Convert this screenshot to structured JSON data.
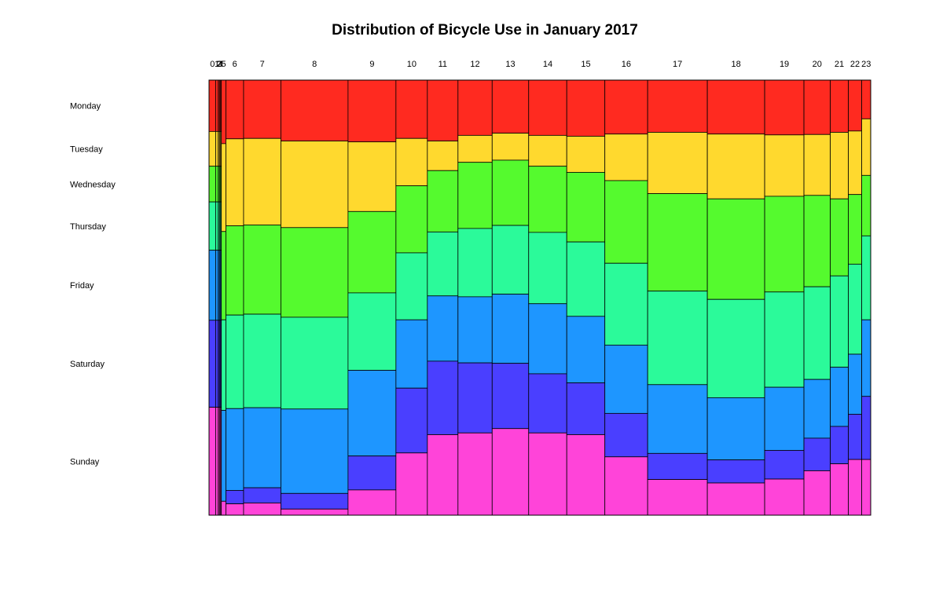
{
  "chart_data": {
    "type": "mosaic",
    "title": "Distribution of Bicycle Use in January 2017",
    "xlabel": "",
    "ylabel": "",
    "hours": [
      "0",
      "1",
      "2",
      "3",
      "4",
      "5",
      "6",
      "7",
      "8",
      "9",
      "10",
      "11",
      "12",
      "13",
      "14",
      "15",
      "16",
      "17",
      "18",
      "19",
      "20",
      "21",
      "22",
      "23"
    ],
    "hour_widths": [
      8.5,
      3.2,
      1.6,
      1.0,
      1.4,
      5.8,
      22.5,
      47.5,
      85.5,
      61,
      40,
      39,
      43.5,
      46.5,
      48.5,
      48.5,
      54.5,
      76,
      73,
      50,
      33.5,
      23,
      17,
      11.5
    ],
    "days": [
      "Monday",
      "Tuesday",
      "Wednesday",
      "Thursday",
      "Friday",
      "Saturday",
      "Sunday"
    ],
    "colors": [
      "#FF2A20",
      "#FFD92E",
      "#55FA2E",
      "#2BFA9A",
      "#1E96FF",
      "#4A3FFF",
      "#FF44D9"
    ],
    "shares_by_hour": [
      [
        0.118,
        0.08,
        0.082,
        0.111,
        0.161,
        0.2,
        0.248
      ],
      [
        0.118,
        0.08,
        0.082,
        0.111,
        0.161,
        0.2,
        0.248
      ],
      [
        0.118,
        0.08,
        0.082,
        0.111,
        0.161,
        0.2,
        0.248
      ],
      [
        0.118,
        0.08,
        0.082,
        0.111,
        0.161,
        0.2,
        0.248
      ],
      [
        0.118,
        0.08,
        0.082,
        0.111,
        0.161,
        0.2,
        0.248
      ],
      [
        0.146,
        0.202,
        0.203,
        0.208,
        0.209,
        0.0,
        0.032
      ],
      [
        0.135,
        0.2,
        0.205,
        0.215,
        0.188,
        0.031,
        0.026
      ],
      [
        0.134,
        0.199,
        0.205,
        0.215,
        0.184,
        0.035,
        0.028
      ],
      [
        0.14,
        0.199,
        0.206,
        0.211,
        0.194,
        0.036,
        0.014
      ],
      [
        0.142,
        0.16,
        0.187,
        0.178,
        0.197,
        0.078,
        0.058
      ],
      [
        0.134,
        0.109,
        0.154,
        0.154,
        0.157,
        0.149,
        0.143
      ],
      [
        0.14,
        0.068,
        0.141,
        0.147,
        0.15,
        0.169,
        0.185
      ],
      [
        0.127,
        0.062,
        0.152,
        0.157,
        0.152,
        0.161,
        0.189
      ],
      [
        0.122,
        0.062,
        0.15,
        0.158,
        0.159,
        0.15,
        0.199
      ],
      [
        0.127,
        0.071,
        0.152,
        0.164,
        0.161,
        0.136,
        0.189
      ],
      [
        0.129,
        0.083,
        0.16,
        0.171,
        0.153,
        0.119,
        0.185
      ],
      [
        0.124,
        0.107,
        0.19,
        0.188,
        0.157,
        0.1,
        0.134
      ],
      [
        0.12,
        0.141,
        0.224,
        0.215,
        0.158,
        0.06,
        0.082
      ],
      [
        0.124,
        0.149,
        0.231,
        0.226,
        0.143,
        0.053,
        0.074
      ],
      [
        0.126,
        0.141,
        0.22,
        0.219,
        0.145,
        0.066,
        0.083
      ],
      [
        0.125,
        0.14,
        0.21,
        0.213,
        0.135,
        0.075,
        0.102
      ],
      [
        0.12,
        0.153,
        0.177,
        0.21,
        0.136,
        0.086,
        0.118
      ],
      [
        0.117,
        0.146,
        0.16,
        0.207,
        0.138,
        0.104,
        0.128
      ],
      [
        0.089,
        0.13,
        0.139,
        0.193,
        0.176,
        0.145,
        0.128
      ]
    ]
  }
}
